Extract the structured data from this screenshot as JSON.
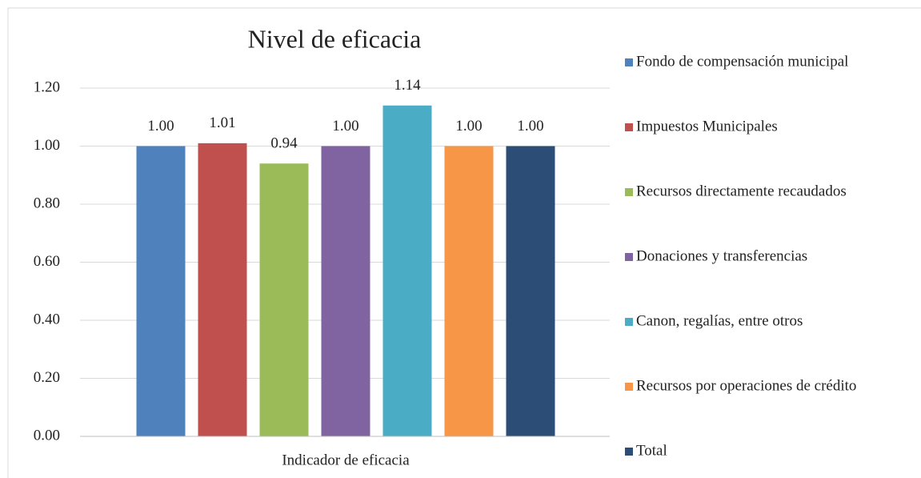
{
  "chart_data": {
    "type": "bar",
    "title": "Nivel de eficacia",
    "categories": [
      "Indicador de eficacia"
    ],
    "series": [
      {
        "name": "Fondo de compensación municipal",
        "color": "#4f81bd",
        "values": [
          1.0
        ],
        "value_labels": [
          "1.00"
        ]
      },
      {
        "name": "Impuestos Municipales",
        "color": "#c0504d",
        "values": [
          1.01
        ],
        "value_labels": [
          "1.01"
        ]
      },
      {
        "name": "Recursos directamente recaudados",
        "color": "#9bbb59",
        "values": [
          0.94
        ],
        "value_labels": [
          "0.94"
        ]
      },
      {
        "name": "Donaciones y transferencias",
        "color": "#8064a2",
        "values": [
          1.0
        ],
        "value_labels": [
          "1.00"
        ]
      },
      {
        "name": "Canon, regalías, entre otros",
        "color": "#4bacc6",
        "values": [
          1.14
        ],
        "value_labels": [
          "1.14"
        ]
      },
      {
        "name": "Recursos por operaciones de crédito",
        "color": "#f79646",
        "values": [
          1.0
        ],
        "value_labels": [
          "1.00"
        ]
      },
      {
        "name": "Total",
        "color": "#2c4d75",
        "values": [
          1.0
        ],
        "value_labels": [
          "1.00"
        ]
      }
    ],
    "ylim": [
      0,
      1.2
    ],
    "yticks": [
      {
        "value": 0,
        "label": "0.00"
      },
      {
        "value": 0.2,
        "label": "0.20"
      },
      {
        "value": 0.4,
        "label": "0.40"
      },
      {
        "value": 0.6,
        "label": "0.60"
      },
      {
        "value": 0.8,
        "label": "0.80"
      },
      {
        "value": 1.0,
        "label": "1.00"
      },
      {
        "value": 1.2,
        "label": "1.20"
      }
    ],
    "grid": true,
    "legend": "right"
  }
}
